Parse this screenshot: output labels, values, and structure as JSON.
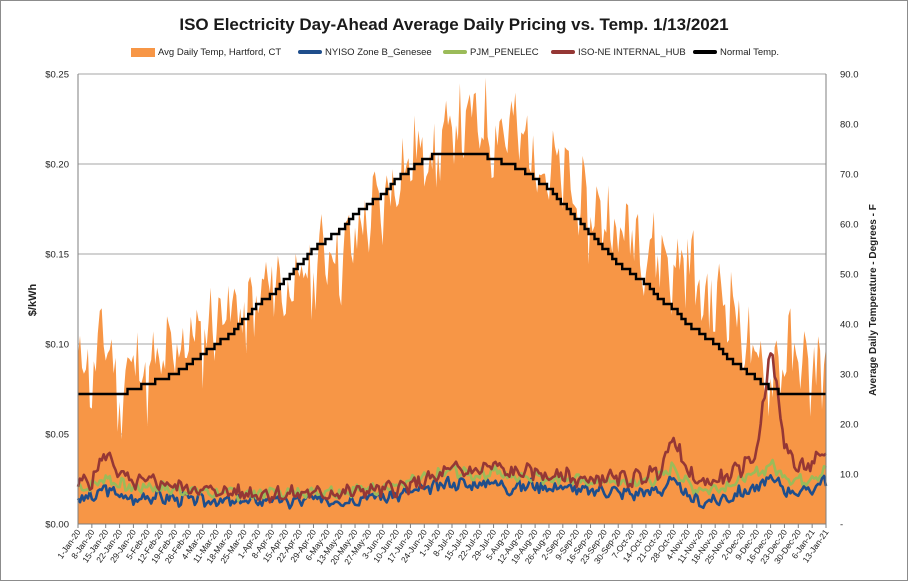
{
  "chart_data": {
    "type": "area",
    "title": "ISO Electricity Day-Ahead Average Daily Pricing vs. Temp. 1/13/2021",
    "ylabel": "$/kWh",
    "y2label": "Average Daily Temperature - Degrees - F",
    "ylim": [
      0,
      0.25
    ],
    "y2lim": [
      0,
      90
    ],
    "yticks": [
      "$0.00",
      "$0.05",
      "$0.10",
      "$0.15",
      "$0.20",
      "$0.25"
    ],
    "y2ticks": [
      "-",
      "10.0",
      "20.0",
      "30.0",
      "40.0",
      "50.0",
      "60.0",
      "70.0",
      "80.0",
      "90.0"
    ],
    "xticks": [
      "1-Jan-20",
      "8-Jan-20",
      "15-Jan-20",
      "22-Jan-20",
      "29-Jan-20",
      "5-Feb-20",
      "12-Feb-20",
      "19-Feb-20",
      "26-Feb-20",
      "4-Mar-20",
      "11-Mar-20",
      "18-Mar-20",
      "25-Mar-20",
      "1-Apr-20",
      "8-Apr-20",
      "15-Apr-20",
      "22-Apr-20",
      "29-Apr-20",
      "6-May-20",
      "13-May-20",
      "20-May-20",
      "27-May-20",
      "3-Jun-20",
      "10-Jun-20",
      "17-Jun-20",
      "24-Jun-20",
      "1-Jul-20",
      "8-Jul-20",
      "15-Jul-20",
      "22-Jul-20",
      "29-Jul-20",
      "5-Aug-20",
      "12-Aug-20",
      "19-Aug-20",
      "26-Aug-20",
      "2-Sep-20",
      "9-Sep-20",
      "16-Sep-20",
      "23-Sep-20",
      "30-Sep-20",
      "7-Oct-20",
      "14-Oct-20",
      "21-Oct-20",
      "28-Oct-20",
      "4-Nov-20",
      "11-Nov-20",
      "18-Nov-20",
      "25-Nov-20",
      "2-Dec-20",
      "9-Dec-20",
      "16-Dec-20",
      "23-Dec-20",
      "30-Dec-20",
      "6-Jan-21",
      "13-Jan-21"
    ],
    "grid": true,
    "legend_position": "top",
    "series": [
      {
        "name": "Avg Daily Temp, Hartford, CT",
        "type": "area",
        "axis": "right",
        "color": "#f79646",
        "weekly_values": [
          35,
          29,
          39,
          24,
          34,
          29,
          32,
          34,
          38,
          37,
          42,
          44,
          41,
          44,
          49,
          47,
          48,
          50,
          56,
          53,
          57,
          62,
          63,
          70,
          73,
          75,
          74,
          79,
          80,
          81,
          78,
          80,
          77,
          74,
          71,
          70,
          65,
          61,
          63,
          57,
          60,
          55,
          55,
          50,
          54,
          45,
          44,
          46,
          38,
          31,
          30,
          34,
          33,
          30,
          32
        ]
      },
      {
        "name": "NYISO Zone B_Genesee",
        "type": "line",
        "axis": "left",
        "color": "#1f4e8c",
        "weekly_values": [
          0.015,
          0.014,
          0.02,
          0.016,
          0.013,
          0.016,
          0.015,
          0.014,
          0.014,
          0.013,
          0.013,
          0.012,
          0.013,
          0.013,
          0.014,
          0.012,
          0.013,
          0.014,
          0.014,
          0.013,
          0.014,
          0.016,
          0.015,
          0.016,
          0.018,
          0.019,
          0.021,
          0.023,
          0.022,
          0.022,
          0.024,
          0.02,
          0.021,
          0.022,
          0.02,
          0.021,
          0.019,
          0.018,
          0.019,
          0.018,
          0.017,
          0.018,
          0.019,
          0.024,
          0.015,
          0.012,
          0.013,
          0.015,
          0.018,
          0.02,
          0.025,
          0.02,
          0.017,
          0.02,
          0.025
        ]
      },
      {
        "name": "PJM_PENELEC",
        "type": "line",
        "axis": "left",
        "color": "#9bbb59",
        "weekly_values": [
          0.02,
          0.021,
          0.026,
          0.022,
          0.02,
          0.021,
          0.02,
          0.019,
          0.019,
          0.018,
          0.017,
          0.017,
          0.017,
          0.017,
          0.018,
          0.017,
          0.018,
          0.018,
          0.019,
          0.018,
          0.019,
          0.02,
          0.02,
          0.021,
          0.023,
          0.025,
          0.027,
          0.03,
          0.028,
          0.027,
          0.03,
          0.026,
          0.027,
          0.027,
          0.025,
          0.026,
          0.024,
          0.023,
          0.024,
          0.023,
          0.023,
          0.024,
          0.026,
          0.032,
          0.022,
          0.019,
          0.02,
          0.022,
          0.025,
          0.028,
          0.033,
          0.027,
          0.024,
          0.026,
          0.03
        ]
      },
      {
        "name": "ISO-NE INTERNAL_HUB",
        "type": "line",
        "axis": "left",
        "color": "#953735",
        "weekly_values": [
          0.023,
          0.024,
          0.04,
          0.028,
          0.022,
          0.024,
          0.023,
          0.021,
          0.02,
          0.019,
          0.018,
          0.018,
          0.017,
          0.017,
          0.017,
          0.016,
          0.017,
          0.017,
          0.017,
          0.017,
          0.018,
          0.019,
          0.019,
          0.02,
          0.021,
          0.024,
          0.026,
          0.031,
          0.029,
          0.03,
          0.033,
          0.028,
          0.029,
          0.029,
          0.026,
          0.027,
          0.025,
          0.024,
          0.026,
          0.025,
          0.025,
          0.027,
          0.03,
          0.048,
          0.028,
          0.023,
          0.024,
          0.027,
          0.032,
          0.04,
          0.098,
          0.045,
          0.03,
          0.034,
          0.038
        ]
      },
      {
        "name": "Normal Temp.",
        "type": "line",
        "axis": "right",
        "color": "#000000",
        "weekly_values": [
          26,
          26,
          26,
          26,
          27,
          28,
          29,
          30,
          32,
          34,
          36,
          38,
          41,
          44,
          46,
          49,
          52,
          55,
          57,
          59,
          62,
          64,
          66,
          69,
          71,
          73,
          74,
          74,
          74,
          74,
          73,
          72,
          71,
          69,
          67,
          64,
          61,
          58,
          55,
          52,
          50,
          48,
          45,
          43,
          40,
          38,
          36,
          33,
          31,
          29,
          27,
          26,
          26,
          26,
          26
        ]
      }
    ]
  }
}
